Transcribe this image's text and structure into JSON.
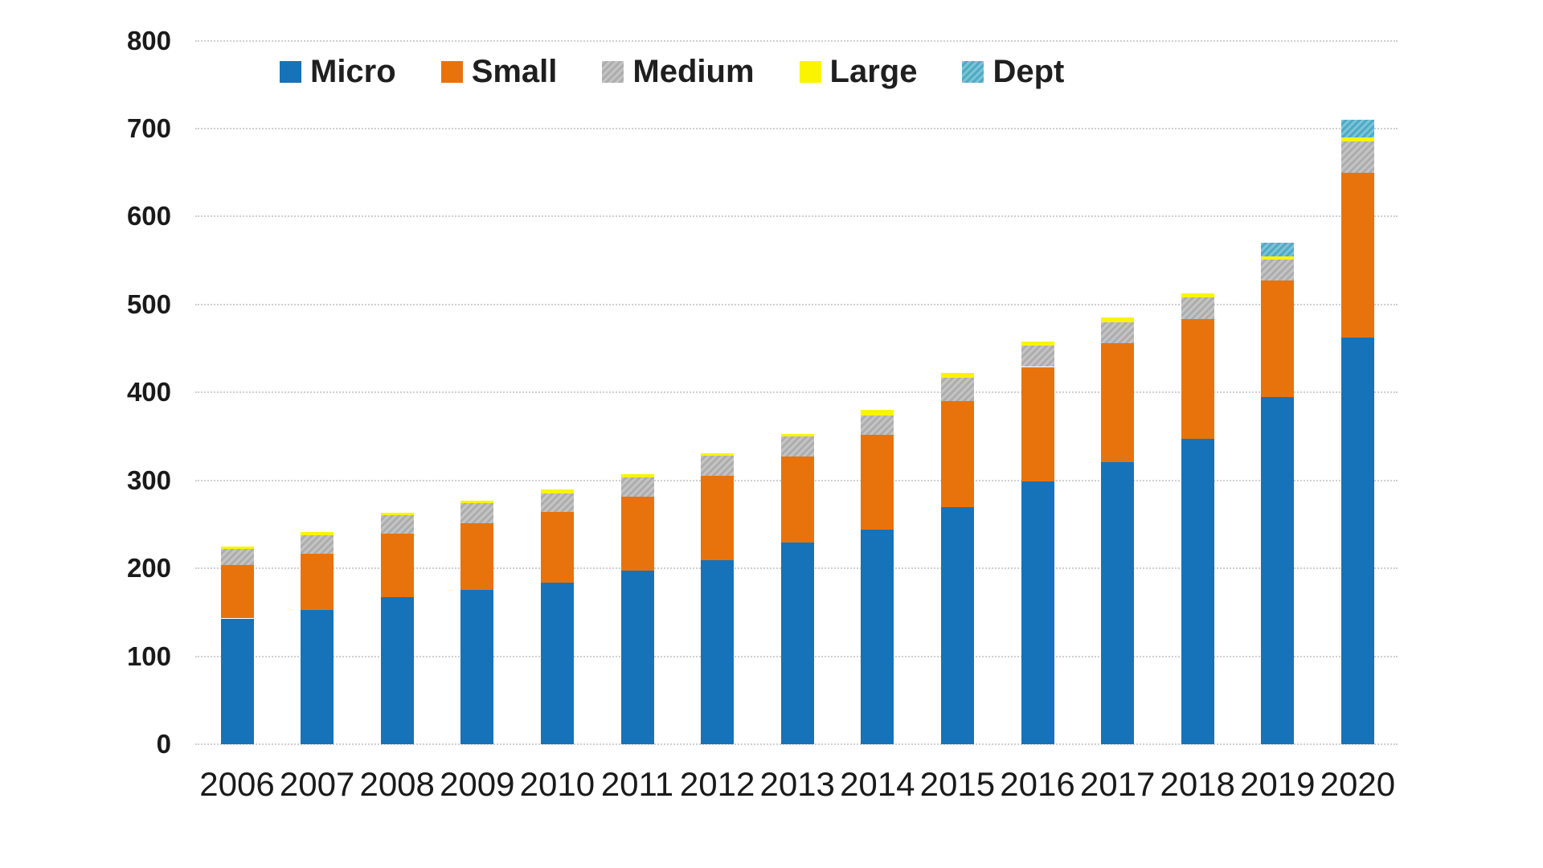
{
  "chart_data": {
    "type": "bar",
    "stacked": true,
    "title": "",
    "xlabel": "",
    "ylabel": "",
    "categories": [
      "2006",
      "2007",
      "2008",
      "2009",
      "2010",
      "2011",
      "2012",
      "2013",
      "2014",
      "2015",
      "2016",
      "2017",
      "2018",
      "2019",
      "2020"
    ],
    "series": [
      {
        "name": "Micro",
        "color": "#1673B9",
        "pattern": false,
        "values": [
          143,
          153,
          167,
          175,
          184,
          197,
          209,
          229,
          244,
          270,
          299,
          321,
          347,
          395,
          462
        ]
      },
      {
        "name": "Small",
        "color": "#E8730C",
        "pattern": false,
        "values": [
          61,
          64,
          72,
          76,
          80,
          84,
          96,
          98,
          108,
          120,
          130,
          135,
          136,
          132,
          188
        ]
      },
      {
        "name": "Medium",
        "color": "#ACACAC",
        "pattern": true,
        "values": [
          18,
          21,
          21,
          23,
          21,
          22,
          23,
          23,
          22,
          27,
          24,
          24,
          25,
          24,
          35
        ]
      },
      {
        "name": "Large",
        "color": "#FAF400",
        "pattern": false,
        "values": [
          3,
          3,
          3,
          3,
          5,
          4,
          3,
          3,
          6,
          5,
          5,
          5,
          5,
          4,
          5
        ]
      },
      {
        "name": "Dept",
        "color": "#4BAAC5",
        "pattern": true,
        "values": [
          0,
          0,
          0,
          0,
          0,
          0,
          0,
          0,
          0,
          0,
          0,
          0,
          0,
          15,
          20
        ]
      }
    ],
    "totals": [
      225,
      241,
      263,
      277,
      290,
      307,
      331,
      353,
      380,
      422,
      458,
      485,
      513,
      570,
      710
    ],
    "ylim": [
      0,
      800
    ],
    "yticks": [
      0,
      100,
      200,
      300,
      400,
      500,
      600,
      700,
      800
    ],
    "grid": "horizontal-dotted",
    "legend_position": "top",
    "background": "#ffffff",
    "gridline_color": "#cfcfcf",
    "text_color": "#1a1a1a"
  }
}
